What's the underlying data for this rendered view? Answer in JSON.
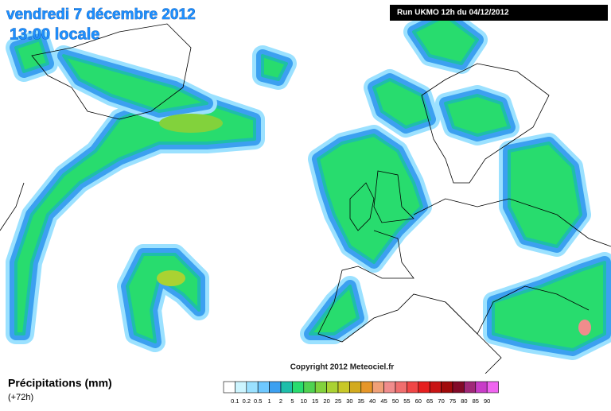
{
  "header": {
    "title": "vendredi 7 décembre 2012",
    "subtitle": "13:00 locale",
    "run": "Run UKMO 12h du 04/12/2012"
  },
  "copyright": "Copyright 2012 Meteociel.fr",
  "legend": {
    "title": "Précipitations (mm)",
    "subtitle": "(+72h)",
    "colors": [
      "#ffffff",
      "#cdf5ff",
      "#9be1ff",
      "#6ec8ff",
      "#3ca0f0",
      "#1ebeaa",
      "#28dc6e",
      "#50d250",
      "#82d23c",
      "#aad232",
      "#c8c828",
      "#d2aa1e",
      "#e69628",
      "#f0a078",
      "#f08c8c",
      "#f06e6e",
      "#f04646",
      "#e61e1e",
      "#c81414",
      "#a00a0a",
      "#820a28",
      "#a02878",
      "#c83cc8",
      "#f064f0"
    ],
    "levels": [
      0.1,
      0.2,
      0.5,
      1,
      2,
      5,
      10,
      15,
      20,
      25,
      30,
      35,
      40,
      45,
      50,
      55,
      60,
      65,
      70,
      75,
      80,
      85,
      90
    ]
  }
}
